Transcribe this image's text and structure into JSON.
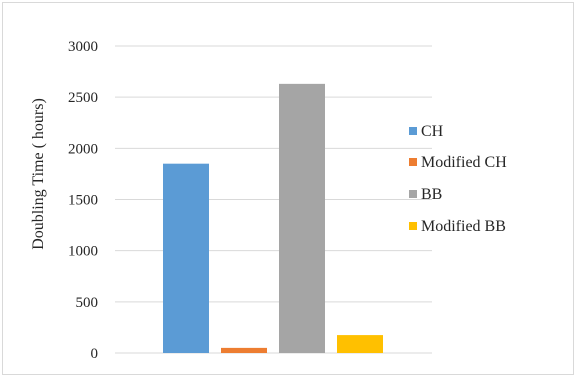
{
  "chart_data": {
    "type": "bar",
    "title": "",
    "xlabel": "",
    "ylabel": "Doubling Time ( hours)",
    "ylim": [
      0,
      3000
    ],
    "yticks": [
      0,
      500,
      1000,
      1500,
      2000,
      2500,
      3000
    ],
    "grid": true,
    "legend_position": "right",
    "series": [
      {
        "name": "CH",
        "value": 1850,
        "color": "#5b9bd5"
      },
      {
        "name": "Modified CH",
        "value": 50,
        "color": "#ed7d31"
      },
      {
        "name": "BB",
        "value": 2630,
        "color": "#a5a5a5"
      },
      {
        "name": "Modified BB",
        "value": 175,
        "color": "#ffc000"
      }
    ]
  }
}
